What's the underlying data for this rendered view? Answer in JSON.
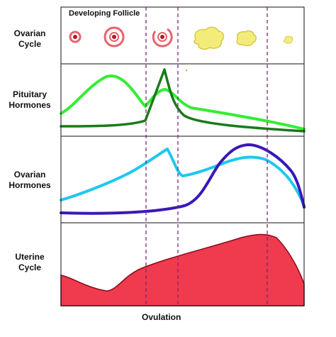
{
  "rows": [
    {
      "id": "ovarian-cycle",
      "label_lines": [
        "Ovarian",
        "Cycle"
      ]
    },
    {
      "id": "pituitary-hormones",
      "label_lines": [
        "Pituitary",
        "Hormones"
      ]
    },
    {
      "id": "ovarian-hormones",
      "label_lines": [
        "Ovarian",
        "Hormones"
      ]
    },
    {
      "id": "uterine-cycle",
      "label_lines": [
        "Uterine",
        "Cycle"
      ]
    }
  ],
  "panel_title": "Developing Follicle",
  "x_label": "Ovulation",
  "colors": {
    "frame": "#111111",
    "divider": "#7a2a7a",
    "follicle_ring": "#e8626c",
    "follicle_core": "#b0182a",
    "corpus_luteum": "#f4ec7a",
    "corpus_luteum_edge": "#d8c84a",
    "lh_curve": "#1a7a1a",
    "fsh_curve": "#33ee33",
    "estrogen_curve": "#1ec8f0",
    "progesterone_curve": "#3a18b8",
    "endometrium_fill": "#f03a4e",
    "endometrium_edge": "#8a0a18"
  }
}
